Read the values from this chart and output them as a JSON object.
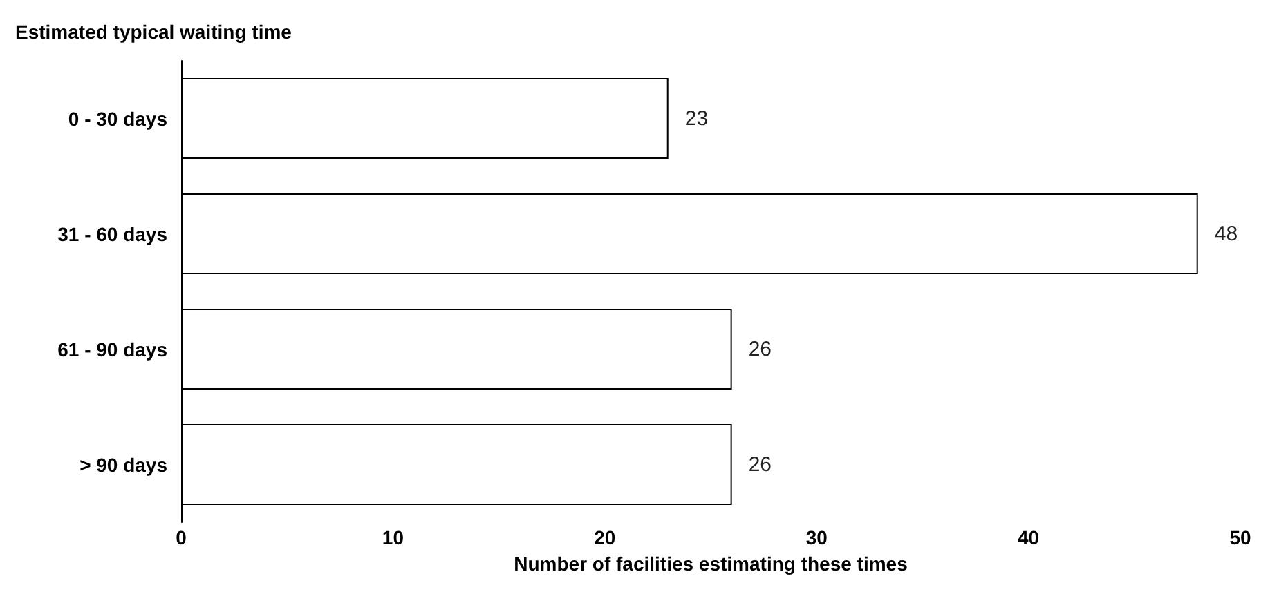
{
  "chart_data": {
    "type": "bar",
    "orientation": "horizontal",
    "ylabel": "Estimated typical waiting time",
    "xlabel": "Number of facilities estimating these times",
    "categories": [
      "0 - 30 days",
      "31 - 60 days",
      "61 - 90 days",
      "> 90 days"
    ],
    "values": [
      23,
      48,
      26,
      26
    ],
    "color": "#ffffff",
    "data_labels": true,
    "xlim": [
      0,
      50
    ],
    "xticks": [
      0,
      10,
      20,
      30,
      40,
      50
    ],
    "grid": false
  }
}
